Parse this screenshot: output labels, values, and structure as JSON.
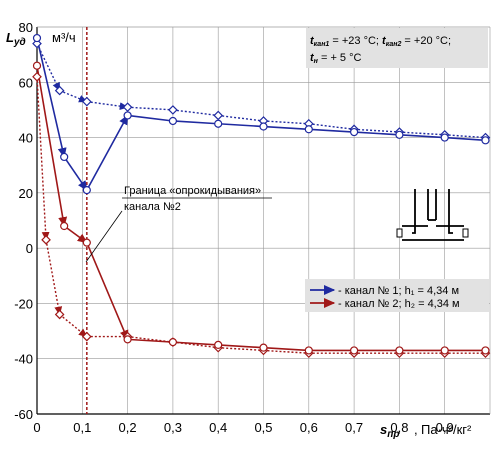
{
  "chart_data": {
    "type": "line",
    "ylabel_main": "L",
    "ylabel_sub": "уд",
    "yunit": "м³/ч",
    "xlabel_main": "s",
    "xlabel_sub": "пр",
    "xunit": "Па·ч²/кг²",
    "xlim": [
      0,
      1.0
    ],
    "ylim": [
      -60,
      80
    ],
    "xticks": [
      0,
      0.1,
      0.2,
      0.3,
      0.4,
      0.5,
      0.6,
      0.7,
      0.8,
      0.9
    ],
    "yticks": [
      -60,
      -40,
      -20,
      0,
      20,
      40,
      60,
      80
    ],
    "xtick_labels": [
      "0",
      "0,1",
      "0,2",
      "0,3",
      "0,4",
      "0,5",
      "0,6",
      "0,7",
      "0,8",
      "0,9"
    ],
    "ytick_labels": [
      "-60",
      "-40",
      "-20",
      "0",
      "20",
      "40",
      "60",
      "80"
    ],
    "grid": true,
    "threshold_x": 0.11,
    "conditions": {
      "line1_a": "t",
      "line1_a_sub": "кан1",
      "line1_a_val": " = +23 °C; ",
      "line1_b": "t",
      "line1_b_sub": "кан2",
      "line1_b_val": " = +20 °C;",
      "line2": "t",
      "line2_sub": "н",
      "line2_val": " = + 5 °C"
    },
    "annotation": {
      "line1": "Граница «опрокидывания»",
      "line2": "канала №2"
    },
    "series": [
      {
        "name": "- канал № 1; h₁ = 4,34 м",
        "color": "#1f2aa0",
        "solid_x": [
          0,
          0.06,
          0.11,
          0.2,
          0.3,
          0.4,
          0.5,
          0.6,
          0.7,
          0.8,
          0.9,
          0.99
        ],
        "solid_y": [
          76,
          33,
          21,
          48,
          46,
          45,
          44,
          43,
          42,
          41,
          40,
          39
        ],
        "dotted_x": [
          0,
          0.05,
          0.11,
          0.2,
          0.3,
          0.4,
          0.5,
          0.6,
          0.7,
          0.8,
          0.9,
          0.99
        ],
        "dotted_y": [
          74,
          57,
          53,
          51,
          50,
          48,
          46,
          45,
          43,
          42,
          41,
          40
        ]
      },
      {
        "name": "- канал № 2; h₂ = 4,34 м",
        "color": "#a01818",
        "solid_x": [
          0,
          0.06,
          0.11,
          0.2,
          0.3,
          0.4,
          0.5,
          0.6,
          0.7,
          0.8,
          0.9,
          0.99
        ],
        "solid_y": [
          66,
          8,
          2,
          -33,
          -34,
          -35,
          -36,
          -37,
          -37,
          -37,
          -37,
          -37
        ],
        "dotted_x": [
          0,
          0.02,
          0.05,
          0.11,
          0.2,
          0.3,
          0.4,
          0.5,
          0.6,
          0.7,
          0.8,
          0.9,
          0.99
        ],
        "dotted_y": [
          62,
          3,
          -24,
          -32,
          -32,
          -34,
          -36,
          -37,
          -38,
          -38,
          -38,
          -38,
          -38
        ]
      }
    ]
  }
}
